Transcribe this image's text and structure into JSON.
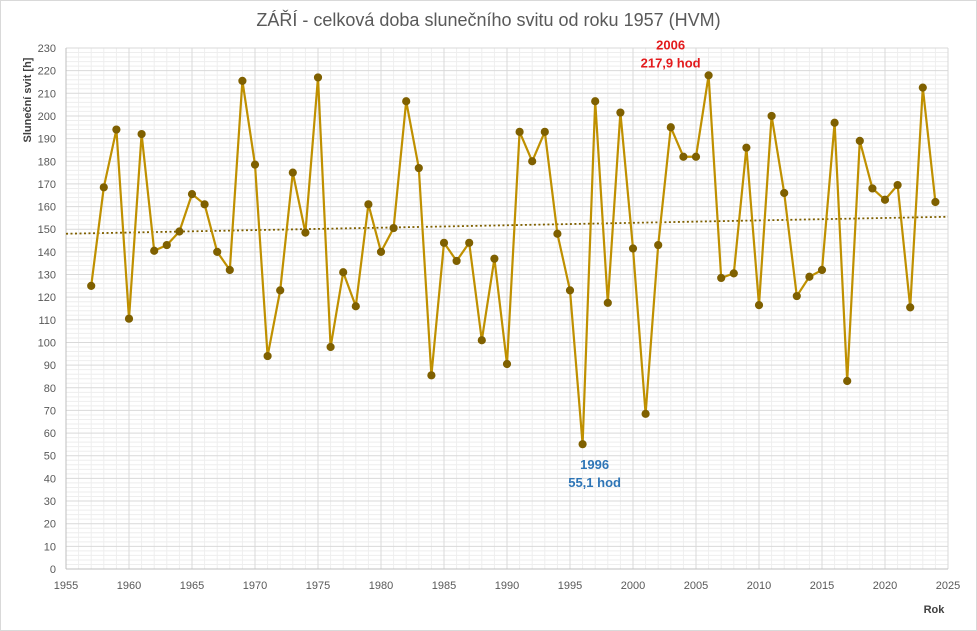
{
  "chart_data": {
    "type": "line",
    "title": "ZÁŘÍ - celková doba slunečního svitu od roku 1957 (HVM)",
    "xlabel": "Rok",
    "ylabel": "Sluneční svit [h]",
    "xlim": [
      1955,
      2025
    ],
    "ylim": [
      0,
      230
    ],
    "x_ticks": [
      1955,
      1960,
      1965,
      1970,
      1975,
      1980,
      1985,
      1990,
      1995,
      2000,
      2005,
      2010,
      2015,
      2020,
      2025
    ],
    "y_ticks": [
      0,
      10,
      20,
      30,
      40,
      50,
      60,
      70,
      80,
      90,
      100,
      110,
      120,
      130,
      140,
      150,
      160,
      170,
      180,
      190,
      200,
      210,
      220,
      230
    ],
    "grid": true,
    "series": [
      {
        "color": "#bf9000",
        "marker_color": "#7f6000",
        "x": [
          1957,
          1958,
          1959,
          1960,
          1961,
          1962,
          1963,
          1964,
          1965,
          1966,
          1967,
          1968,
          1969,
          1970,
          1971,
          1972,
          1973,
          1974,
          1975,
          1976,
          1977,
          1978,
          1979,
          1980,
          1981,
          1982,
          1983,
          1984,
          1985,
          1986,
          1987,
          1988,
          1989,
          1990,
          1991,
          1992,
          1993,
          1994,
          1995,
          1996,
          1997,
          1998,
          1999,
          2000,
          2001,
          2002,
          2003,
          2004,
          2005,
          2006,
          2007,
          2008,
          2009,
          2010,
          2011,
          2012,
          2013,
          2014,
          2015,
          2016,
          2017,
          2018,
          2019,
          2020,
          2021,
          2022,
          2023,
          2024
        ],
        "values": [
          125,
          168.5,
          194,
          110.5,
          192,
          140.5,
          143,
          149,
          165.5,
          161,
          140,
          132,
          215.5,
          178.5,
          94,
          123,
          175,
          148.5,
          217,
          98,
          131,
          116,
          161,
          140,
          150.5,
          206.5,
          177,
          85.5,
          144,
          136,
          144,
          101,
          137,
          90.5,
          193,
          180,
          193,
          148,
          123,
          55.1,
          206.5,
          117.5,
          201.5,
          141.5,
          68.5,
          143,
          195,
          182,
          182,
          217.9,
          128.5,
          130.5,
          186,
          116.5,
          200,
          166,
          120.5,
          129,
          132,
          197,
          83,
          189,
          168,
          163,
          169.5,
          115.5,
          212.5,
          162
        ]
      }
    ],
    "trendline": {
      "style": "dotted",
      "color": "#7f6000",
      "start": [
        1955,
        148
      ],
      "end": [
        2025,
        155.5
      ]
    },
    "annotations": [
      {
        "x": 2006,
        "y": 217.9,
        "line1": "2006",
        "line2": "217,9 hod",
        "color": "#e31a1c",
        "position": "above"
      },
      {
        "x": 1996,
        "y": 55.1,
        "line1": "1996",
        "line2": "55,1 hod",
        "color": "#2e75b6",
        "position": "below"
      }
    ]
  }
}
